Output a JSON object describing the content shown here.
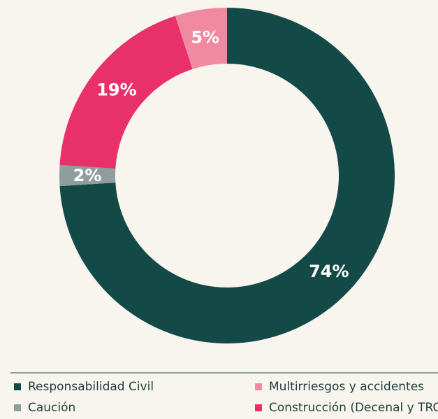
{
  "chart_data": {
    "type": "donut",
    "categories": [
      "Responsabilidad Civil",
      "Caución",
      "Construcción (Decenal y TRC)",
      "Multirriesgos y accidentes"
    ],
    "values": [
      74,
      2,
      19,
      5
    ],
    "value_labels": [
      "74%",
      "2%",
      "19%",
      "5%"
    ],
    "colors": [
      "#134a47",
      "#8e9e9c",
      "#e8306a",
      "#f08aa0"
    ]
  }
}
